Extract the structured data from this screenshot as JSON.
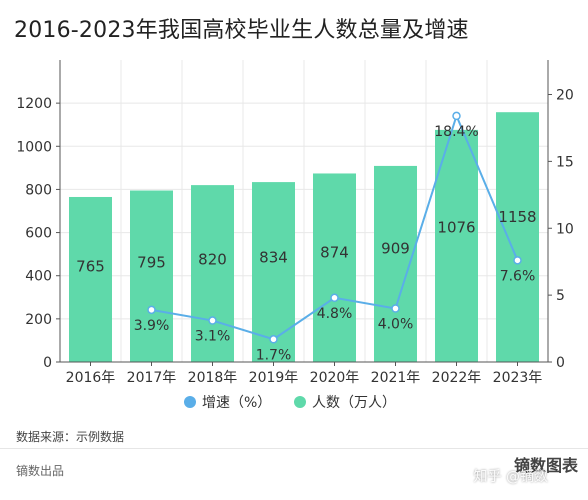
{
  "header": {
    "title": "2016-2023年我国高校毕业生人数总量及增速"
  },
  "footer": {
    "source": "数据来源：示例数据",
    "brand": "镝数出品",
    "logo": "镝数图表",
    "watermark": "知乎 @镝数"
  },
  "chart_data": {
    "type": "bar",
    "categories": [
      "2016年",
      "2017年",
      "2018年",
      "2019年",
      "2020年",
      "2021年",
      "2022年",
      "2023年"
    ],
    "series": [
      {
        "name": "人数（万人）",
        "type": "bar",
        "axis": "left",
        "values": [
          765,
          795,
          820,
          834,
          874,
          909,
          1076,
          1158
        ],
        "labels": [
          "765",
          "795",
          "820",
          "834",
          "874",
          "909",
          "1076",
          "1158"
        ]
      },
      {
        "name": "增速（%）",
        "type": "line",
        "axis": "right",
        "values": [
          null,
          3.9,
          3.1,
          1.7,
          4.8,
          4.0,
          18.4,
          7.6
        ],
        "labels": [
          "",
          "3.9%",
          "3.1%",
          "1.7%",
          "4.8%",
          "4.0%",
          "18.4%",
          "7.6%"
        ]
      }
    ],
    "y_left": {
      "ticks": [
        0,
        200,
        400,
        600,
        800,
        1000,
        1200
      ],
      "range": [
        0,
        1400
      ]
    },
    "y_right": {
      "ticks": [
        0,
        5,
        10,
        15,
        20
      ],
      "range": [
        0,
        22.58
      ]
    },
    "legend": {
      "position": "bottom"
    },
    "grid": true,
    "colors": {
      "bar": "#5fd9aa",
      "line": "#5aaee8",
      "axis": "#555555",
      "grid": "#e8e8e8"
    }
  }
}
